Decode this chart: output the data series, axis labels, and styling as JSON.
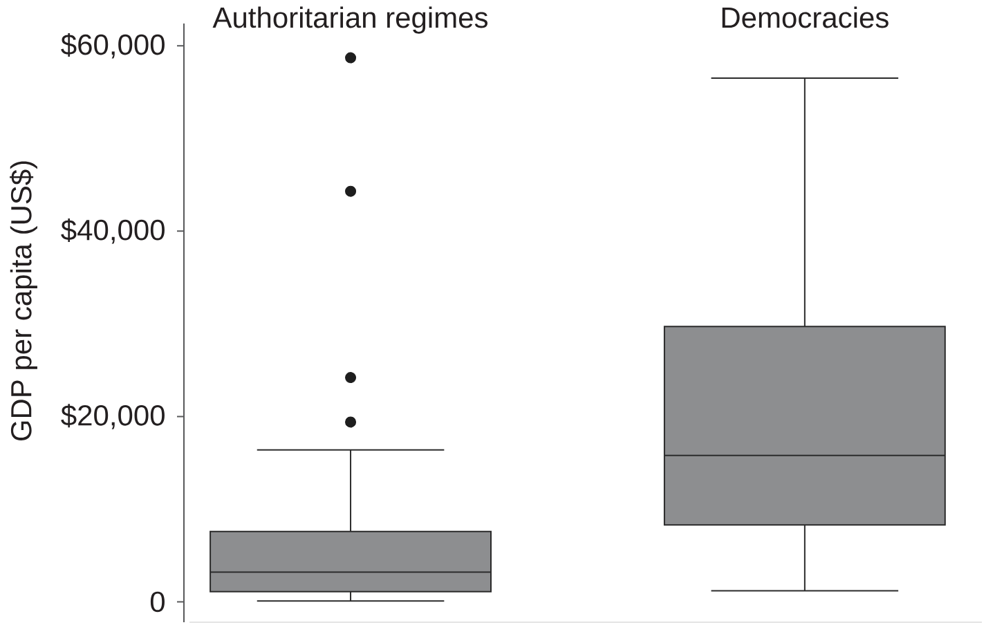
{
  "chart_data": {
    "type": "box",
    "ylabel": "GDP per capita (US$)",
    "categories": [
      "Authoritarian regimes",
      "Democracies"
    ],
    "boxes": [
      {
        "low": 100,
        "q1": 1100,
        "median": 3200,
        "q3": 7600,
        "high": 16400,
        "outliers": [
          19400,
          24200,
          44300,
          58700
        ]
      },
      {
        "low": 1200,
        "q1": 8300,
        "median": 15800,
        "q3": 29700,
        "high": 56500
      }
    ],
    "color": "#8d8e90",
    "ylim": [
      -2200,
      62400
    ],
    "yticks": [
      0,
      {
        "value": 20000,
        "label": "$20,000"
      },
      {
        "value": 40000,
        "label": "$40,000"
      },
      {
        "value": 60000,
        "label": "$60,000"
      }
    ]
  }
}
